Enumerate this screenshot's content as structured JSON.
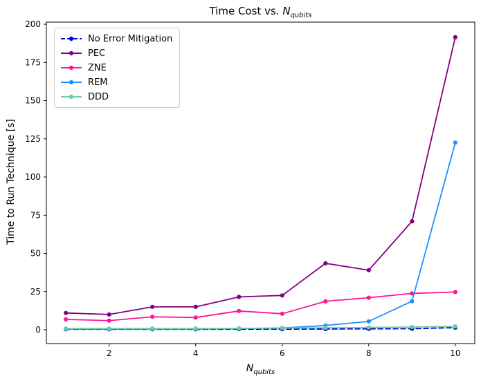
{
  "figure": {
    "title": {
      "prefix": "Time Cost vs. ",
      "var": "N",
      "sub": "qubits"
    },
    "xlabel": {
      "var": "N",
      "sub": "qubits"
    },
    "ylabel": "Time to Run Technique [s]"
  },
  "chart_data": {
    "type": "line",
    "title": "Time Cost vs. N_qubits",
    "xlabel": "N_qubits",
    "ylabel": "Time to Run Technique [s]",
    "x": [
      1,
      2,
      3,
      4,
      5,
      6,
      7,
      8,
      9,
      10
    ],
    "series": [
      {
        "name": "No Error Mitigation",
        "color": "#0000CD",
        "dash": true,
        "marker": "circle",
        "values": [
          0.3,
          0.3,
          0.3,
          0.3,
          0.4,
          0.4,
          0.5,
          0.6,
          0.7,
          1.4
        ]
      },
      {
        "name": "PEC",
        "color": "#800080",
        "dash": false,
        "marker": "circle",
        "values": [
          11,
          10,
          15,
          15,
          21.5,
          22.5,
          43.5,
          39,
          71,
          191.5
        ]
      },
      {
        "name": "ZNE",
        "color": "#FF1493",
        "dash": false,
        "marker": "circle",
        "values": [
          6.8,
          6,
          8.5,
          8,
          12.3,
          10.5,
          18.6,
          21,
          23.8,
          24.7
        ]
      },
      {
        "name": "REM",
        "color": "#1E90FF",
        "dash": false,
        "marker": "circle",
        "values": [
          0.5,
          0.5,
          0.5,
          0.6,
          0.8,
          1.2,
          2.8,
          5.5,
          18.7,
          122.5
        ]
      },
      {
        "name": "DDD",
        "color": "#66CDAA",
        "dash": false,
        "marker": "circle",
        "values": [
          0.8,
          0.8,
          0.8,
          0.8,
          0.9,
          1.1,
          1.3,
          1.5,
          1.8,
          2.2
        ]
      }
    ],
    "xticks": [
      2,
      4,
      6,
      8,
      10
    ],
    "yticks": [
      0,
      25,
      50,
      75,
      100,
      125,
      150,
      175,
      200
    ],
    "xlim": [
      0.55,
      10.45
    ],
    "ylim": [
      -9.05,
      201.4
    ],
    "grid": false,
    "legend_position": "upper left"
  }
}
